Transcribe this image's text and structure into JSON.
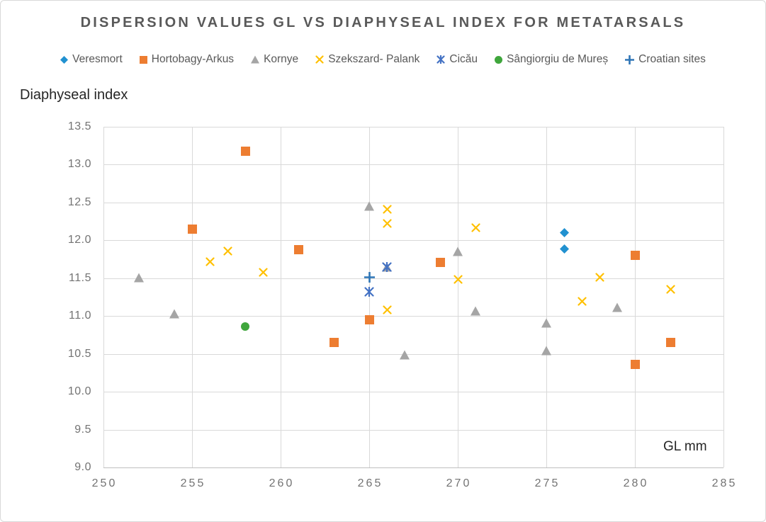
{
  "title": "DISPERSION VALUES GL VS DIAPHYSEAL INDEX FOR METATARSALS",
  "y_axis_title": "Diaphyseal index",
  "x_axis_title": "GL mm",
  "chart_data": {
    "type": "scatter",
    "title": "DISPERSION VALUES GL VS DIAPHYSEAL INDEX FOR METATARSALS",
    "xlabel": "GL mm",
    "ylabel": "Diaphyseal index",
    "xlim": [
      250,
      285
    ],
    "ylim": [
      9.0,
      13.5
    ],
    "x_ticks": [
      "250",
      "255",
      "260",
      "265",
      "270",
      "275",
      "280",
      "285"
    ],
    "y_ticks": [
      "13.5",
      "13.0",
      "12.5",
      "12.0",
      "11.5",
      "11.0",
      "10.5",
      "10.0",
      "9.5",
      "9.0"
    ],
    "grid": true,
    "legend_position": "top",
    "series": [
      {
        "name": "Veresmort",
        "marker": "diamond",
        "color": "#2191D0",
        "points": [
          [
            276,
            12.1
          ],
          [
            276,
            11.89
          ]
        ]
      },
      {
        "name": "Hortobagy-Arkus",
        "marker": "square",
        "color": "#ED7D31",
        "points": [
          [
            255,
            12.15
          ],
          [
            258,
            13.18
          ],
          [
            261,
            11.88
          ],
          [
            263,
            10.65
          ],
          [
            265,
            10.95
          ],
          [
            269,
            11.71
          ],
          [
            280,
            11.8
          ],
          [
            280,
            10.36
          ],
          [
            282,
            10.65
          ]
        ]
      },
      {
        "name": "Kornye",
        "marker": "triangle",
        "color": "#A5A5A5",
        "points": [
          [
            252,
            11.51
          ],
          [
            254,
            11.03
          ],
          [
            265,
            12.45
          ],
          [
            266,
            11.65
          ],
          [
            267,
            10.49
          ],
          [
            270,
            11.85
          ],
          [
            271,
            11.07
          ],
          [
            275,
            10.91
          ],
          [
            275,
            10.54
          ],
          [
            279,
            11.11
          ]
        ]
      },
      {
        "name": "Szekszard- Palank",
        "marker": "x",
        "color": "#FFC000",
        "points": [
          [
            256,
            11.72
          ],
          [
            257,
            11.86
          ],
          [
            259,
            11.58
          ],
          [
            266,
            12.41
          ],
          [
            266,
            12.22
          ],
          [
            266,
            11.08
          ],
          [
            270,
            11.48
          ],
          [
            271,
            12.17
          ],
          [
            277,
            11.19
          ],
          [
            278,
            11.51
          ],
          [
            282,
            11.35
          ]
        ]
      },
      {
        "name": "Cicău",
        "marker": "star",
        "color": "#4472C4",
        "points": [
          [
            265,
            11.32
          ],
          [
            266,
            11.65
          ]
        ]
      },
      {
        "name": "Sângiorgiu de Mureș",
        "marker": "circle",
        "color": "#3FA63C",
        "points": [
          [
            258,
            10.86
          ]
        ]
      },
      {
        "name": "Croatian sites",
        "marker": "plus",
        "color": "#2E75B6",
        "points": [
          [
            265,
            11.51
          ]
        ]
      }
    ]
  }
}
